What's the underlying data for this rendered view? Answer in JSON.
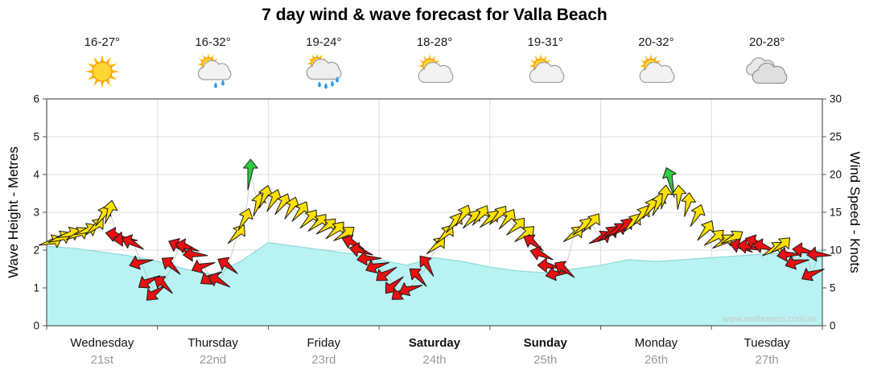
{
  "title": "7 day wind & wave forecast for Valla Beach",
  "watermark": "www.seabreeze.com.au",
  "axes": {
    "left_label": "Wave Height - Metres",
    "right_label": "Wind Speed - Knots",
    "left_ticks": [
      0,
      1,
      2,
      3,
      4,
      5,
      6
    ],
    "right_ticks": [
      0,
      5,
      10,
      15,
      20,
      25,
      30
    ]
  },
  "days": [
    {
      "name": "Wednesday",
      "date": "21st",
      "temp": "16-27°",
      "icon": "sunny",
      "bold": false
    },
    {
      "name": "Thursday",
      "date": "22nd",
      "temp": "16-32°",
      "icon": "partly-cloudy-shower",
      "bold": false
    },
    {
      "name": "Friday",
      "date": "23rd",
      "temp": "19-24°",
      "icon": "partly-cloudy-rain",
      "bold": false
    },
    {
      "name": "Saturday",
      "date": "24th",
      "temp": "18-28°",
      "icon": "partly-cloudy",
      "bold": true
    },
    {
      "name": "Sunday",
      "date": "25th",
      "temp": "19-31°",
      "icon": "partly-cloudy",
      "bold": true
    },
    {
      "name": "Monday",
      "date": "26th",
      "temp": "20-32°",
      "icon": "partly-cloudy",
      "bold": false
    },
    {
      "name": "Tuesday",
      "date": "27th",
      "temp": "20-28°",
      "icon": "cloudy",
      "bold": false
    }
  ],
  "colors": {
    "wave_fill": "#b9f2f2",
    "wave_line": "#8fd9d9",
    "arrow_yellow": "#ffe100",
    "arrow_red": "#e81010",
    "arrow_green": "#2ecc40",
    "grid": "#dcdcdc",
    "frame": "#555555",
    "tick_text": "#111111",
    "wind_line": "#aaaaaa",
    "date_text": "#9a9a9a",
    "watermark": "#c9c9c9"
  },
  "chart_data": {
    "type": "area",
    "title": "7 day wind & wave forecast for Valla Beach",
    "x_unit": "days (Wed 21st .. Tue 27th)",
    "x_range": [
      0,
      7
    ],
    "grid": true,
    "wave_height_m": {
      "ylabel": "Wave Height - Metres",
      "ylim": [
        0,
        6
      ],
      "points_t_m": [
        [
          0,
          2.1
        ],
        [
          0.25,
          2.05
        ],
        [
          0.5,
          1.95
        ],
        [
          0.75,
          1.85
        ],
        [
          1,
          1.7
        ],
        [
          1.25,
          1.5
        ],
        [
          1.5,
          1.35
        ],
        [
          1.75,
          1.7
        ],
        [
          2,
          2.2
        ],
        [
          2.25,
          2.1
        ],
        [
          2.5,
          2
        ],
        [
          2.75,
          1.9
        ],
        [
          3,
          1.75
        ],
        [
          3.25,
          1.6
        ],
        [
          3.5,
          1.8
        ],
        [
          3.75,
          1.7
        ],
        [
          4,
          1.55
        ],
        [
          4.25,
          1.45
        ],
        [
          4.5,
          1.4
        ],
        [
          4.75,
          1.5
        ],
        [
          5,
          1.6
        ],
        [
          5.25,
          1.75
        ],
        [
          5.5,
          1.7
        ],
        [
          5.75,
          1.75
        ],
        [
          6,
          1.8
        ],
        [
          6.25,
          1.85
        ],
        [
          6.5,
          1.9
        ],
        [
          6.75,
          1.95
        ],
        [
          7,
          2
        ]
      ]
    },
    "wind_knots": {
      "ylabel": "Wind Speed - Knots",
      "ylim": [
        0,
        30
      ],
      "arrow_format": [
        "t_days",
        "knots",
        "dir_deg_cw_from_east",
        "color_code"
      ],
      "color_codes": {
        "y": "yellow",
        "r": "red",
        "g": "green"
      },
      "arrows": [
        [
          0.04,
          11,
          -25,
          "y"
        ],
        [
          0.12,
          11.5,
          -30,
          "y"
        ],
        [
          0.2,
          12,
          -25,
          "y"
        ],
        [
          0.28,
          12,
          -35,
          "y"
        ],
        [
          0.36,
          12.5,
          -30,
          "y"
        ],
        [
          0.44,
          13,
          -50,
          "y"
        ],
        [
          0.51,
          14.5,
          -65,
          "y"
        ],
        [
          0.57,
          15,
          -80,
          "y"
        ],
        [
          0.64,
          12,
          190,
          "r"
        ],
        [
          0.71,
          11.5,
          175,
          "r"
        ],
        [
          0.78,
          11,
          200,
          "r"
        ],
        [
          0.85,
          8.5,
          160,
          "r"
        ],
        [
          0.92,
          6,
          145,
          "r"
        ],
        [
          0.98,
          4.5,
          135,
          "r"
        ],
        [
          1.06,
          5.5,
          215,
          "r"
        ],
        [
          1.13,
          8,
          -145,
          "r"
        ],
        [
          1.2,
          10.5,
          -155,
          "r"
        ],
        [
          1.27,
          10.5,
          -170,
          "r"
        ],
        [
          1.34,
          9.5,
          175,
          "r"
        ],
        [
          1.41,
          8,
          155,
          "r"
        ],
        [
          1.48,
          6.5,
          145,
          "r"
        ],
        [
          1.56,
          6,
          -160,
          "r"
        ],
        [
          1.64,
          8,
          -150,
          "r"
        ],
        [
          1.72,
          12,
          -55,
          "y"
        ],
        [
          1.79,
          14,
          -70,
          "y"
        ],
        [
          1.84,
          20,
          -90,
          "g"
        ],
        [
          1.91,
          16,
          -80,
          "y"
        ],
        [
          1.97,
          17,
          -75,
          "y"
        ],
        [
          2.05,
          16.5,
          -70,
          "y"
        ],
        [
          2.13,
          16,
          -65,
          "y"
        ],
        [
          2.21,
          15.5,
          -70,
          "y"
        ],
        [
          2.29,
          15,
          -60,
          "y"
        ],
        [
          2.37,
          14,
          -55,
          "y"
        ],
        [
          2.45,
          13.5,
          -50,
          "y"
        ],
        [
          2.53,
          13,
          -45,
          "y"
        ],
        [
          2.61,
          12.5,
          -50,
          "y"
        ],
        [
          2.69,
          12,
          -40,
          "y"
        ],
        [
          2.77,
          11,
          200,
          "r"
        ],
        [
          2.84,
          10,
          190,
          "r"
        ],
        [
          2.91,
          9,
          170,
          "r"
        ],
        [
          2.98,
          8,
          155,
          "r"
        ],
        [
          3.06,
          7,
          140,
          "r"
        ],
        [
          3.13,
          5.5,
          130,
          "r"
        ],
        [
          3.2,
          4.5,
          140,
          "r"
        ],
        [
          3.28,
          5,
          155,
          "r"
        ],
        [
          3.36,
          6.5,
          -140,
          "r"
        ],
        [
          3.44,
          8,
          -130,
          "r"
        ],
        [
          3.52,
          10.5,
          -50,
          "y"
        ],
        [
          3.6,
          12,
          -55,
          "y"
        ],
        [
          3.68,
          13.5,
          -60,
          "y"
        ],
        [
          3.76,
          14.5,
          -65,
          "y"
        ],
        [
          3.84,
          14,
          -55,
          "y"
        ],
        [
          3.92,
          14.5,
          -60,
          "y"
        ],
        [
          4,
          14,
          -50,
          "y"
        ],
        [
          4.08,
          14.5,
          -55,
          "y"
        ],
        [
          4.16,
          14,
          -60,
          "y"
        ],
        [
          4.24,
          13,
          -50,
          "y"
        ],
        [
          4.32,
          12,
          -45,
          "y"
        ],
        [
          4.4,
          11,
          210,
          "r"
        ],
        [
          4.47,
          9.5,
          195,
          "r"
        ],
        [
          4.54,
          8,
          180,
          "r"
        ],
        [
          4.61,
          7,
          165,
          "r"
        ],
        [
          4.68,
          7.5,
          -150,
          "r"
        ],
        [
          4.76,
          12,
          -45,
          "y"
        ],
        [
          4.84,
          13,
          -50,
          "y"
        ],
        [
          4.92,
          13.5,
          -55,
          "y"
        ],
        [
          5,
          11.5,
          -35,
          "r"
        ],
        [
          5.07,
          12,
          -45,
          "r"
        ],
        [
          5.14,
          12.5,
          -40,
          "r"
        ],
        [
          5.21,
          13,
          -50,
          "r"
        ],
        [
          5.29,
          13.5,
          -55,
          "y"
        ],
        [
          5.37,
          14.5,
          -60,
          "y"
        ],
        [
          5.45,
          15.5,
          -65,
          "y"
        ],
        [
          5.52,
          16,
          -75,
          "y"
        ],
        [
          5.58,
          17,
          -85,
          "y"
        ],
        [
          5.64,
          19,
          -110,
          "g"
        ],
        [
          5.71,
          17,
          -95,
          "y"
        ],
        [
          5.79,
          16,
          -85,
          "y"
        ],
        [
          5.87,
          14.5,
          -70,
          "y"
        ],
        [
          5.95,
          12.5,
          -60,
          "y"
        ],
        [
          6.03,
          11.5,
          -45,
          "y"
        ],
        [
          6.11,
          11,
          -40,
          "y"
        ],
        [
          6.19,
          11.5,
          -35,
          "y"
        ],
        [
          6.27,
          10.5,
          195,
          "r"
        ],
        [
          6.34,
          10.5,
          185,
          "r"
        ],
        [
          6.41,
          11,
          200,
          "r"
        ],
        [
          6.48,
          10.5,
          190,
          "r"
        ],
        [
          6.56,
          10,
          -40,
          "y"
        ],
        [
          6.63,
          10.5,
          -45,
          "y"
        ],
        [
          6.7,
          9.5,
          170,
          "r"
        ],
        [
          6.77,
          8.5,
          160,
          "r"
        ],
        [
          6.84,
          10,
          185,
          "r"
        ],
        [
          6.91,
          7,
          150,
          "r"
        ],
        [
          6.97,
          9.5,
          175,
          "r"
        ]
      ]
    }
  }
}
